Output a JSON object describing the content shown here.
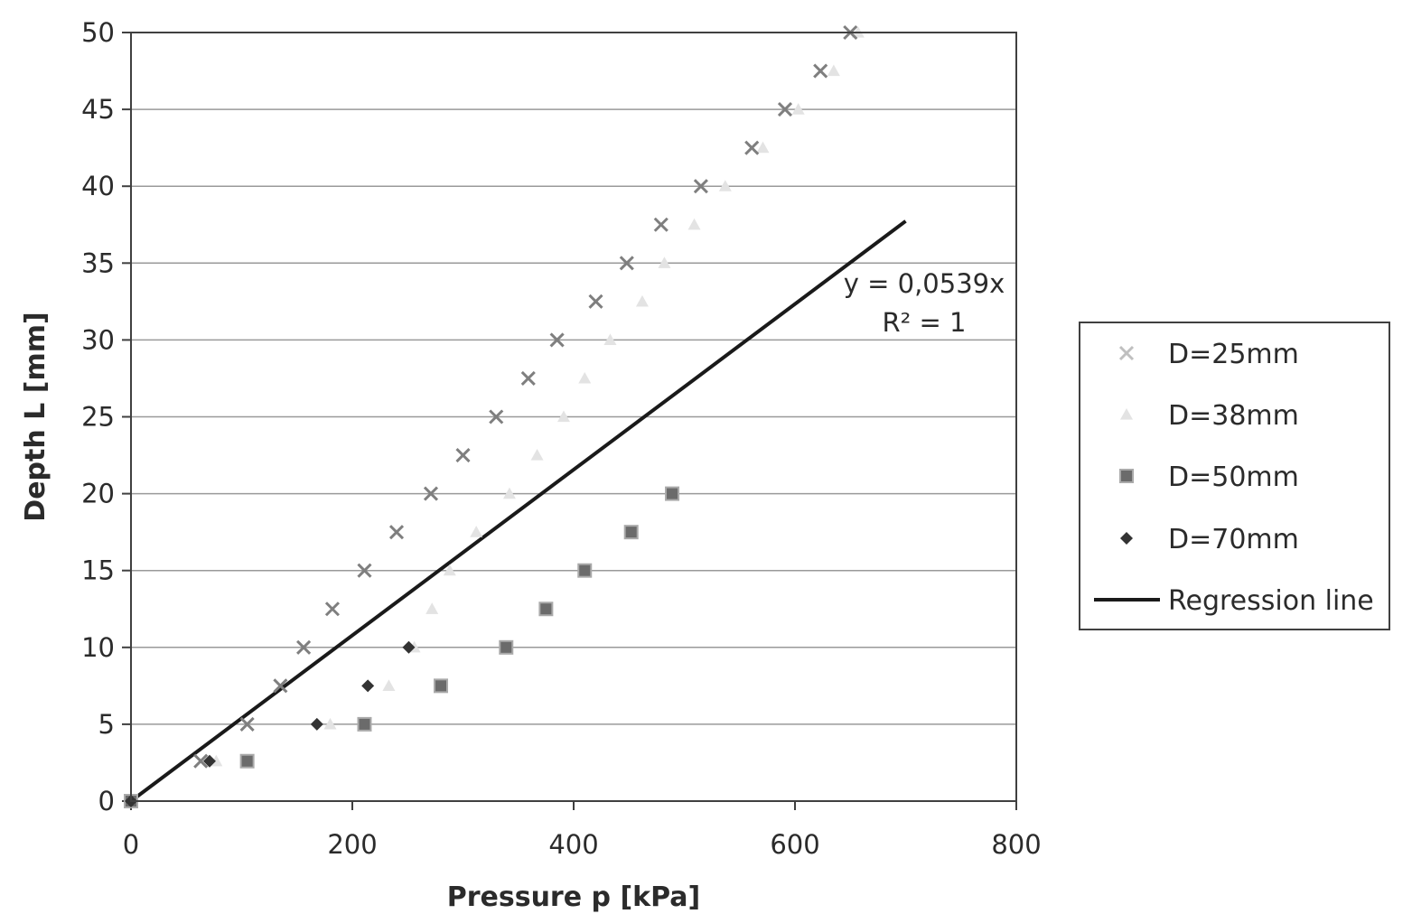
{
  "chart_data": {
    "type": "scatter",
    "xlabel": "Pressure p [kPa]",
    "ylabel": "Depth L [mm]",
    "xlim": [
      0,
      800
    ],
    "ylim": [
      0,
      50
    ],
    "xticks": [
      0,
      200,
      400,
      600,
      800
    ],
    "yticks": [
      0,
      5,
      10,
      15,
      20,
      25,
      30,
      35,
      40,
      45,
      50
    ],
    "grid": "horizontal",
    "legend_position": "right",
    "series": [
      {
        "name": "D=25mm",
        "marker": "x",
        "color": "#7f7f7f",
        "legend_color": "#bfbfbf",
        "points": [
          [
            0,
            0
          ],
          [
            63,
            2.6
          ],
          [
            105,
            5
          ],
          [
            135,
            7.5
          ],
          [
            156,
            10
          ],
          [
            182,
            12.5
          ],
          [
            211,
            15
          ],
          [
            240,
            17.5
          ],
          [
            271,
            20
          ],
          [
            300,
            22.5
          ],
          [
            330,
            25
          ],
          [
            359,
            27.5
          ],
          [
            385,
            30
          ],
          [
            420,
            32.5
          ],
          [
            448,
            35
          ],
          [
            479,
            37.5
          ],
          [
            515,
            40
          ],
          [
            561,
            42.5
          ],
          [
            591,
            45
          ],
          [
            623,
            47.5
          ],
          [
            650,
            50
          ]
        ]
      },
      {
        "name": "D=38mm",
        "marker": "triangle",
        "color": "#e3e3e3",
        "legend_color": "#e3e3e3",
        "points": [
          [
            0,
            0
          ],
          [
            77,
            2.6
          ],
          [
            180,
            5
          ],
          [
            233,
            7.5
          ],
          [
            256,
            10
          ],
          [
            272,
            12.5
          ],
          [
            288,
            15
          ],
          [
            312,
            17.5
          ],
          [
            342,
            20
          ],
          [
            367,
            22.5
          ],
          [
            391,
            25
          ],
          [
            410,
            27.5
          ],
          [
            433,
            30
          ],
          [
            462,
            32.5
          ],
          [
            482,
            35
          ],
          [
            509,
            37.5
          ],
          [
            537,
            40
          ],
          [
            571,
            42.5
          ],
          [
            603,
            45
          ],
          [
            635,
            47.5
          ],
          [
            657,
            50
          ]
        ]
      },
      {
        "name": "D=50mm",
        "marker": "square",
        "color": "#6b6b6b",
        "legend_color": "#6b6b6b",
        "points": [
          [
            0,
            0
          ],
          [
            105,
            2.6
          ],
          [
            211,
            5
          ],
          [
            280,
            7.5
          ],
          [
            339,
            10
          ],
          [
            375,
            12.5
          ],
          [
            410,
            15
          ],
          [
            452,
            17.5
          ],
          [
            489,
            20
          ]
        ]
      },
      {
        "name": "D=70mm",
        "marker": "diamond",
        "color": "#333333",
        "legend_color": "#333333",
        "points": [
          [
            0,
            0
          ],
          [
            71,
            2.6
          ],
          [
            168,
            5
          ],
          [
            214,
            7.5
          ],
          [
            251,
            10
          ]
        ]
      }
    ],
    "regression": {
      "name": "Regression line",
      "slope": 0.0539,
      "x_range": [
        0,
        700
      ],
      "color": "#1a1a1a",
      "equation": "y = 0,0539x",
      "r_squared": "R² = 1"
    }
  }
}
